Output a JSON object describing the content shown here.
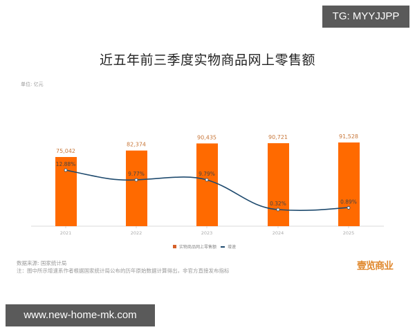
{
  "watermark_top": "TG: MYYJJPP",
  "watermark_bottom": "www.new-home-mk.com",
  "unit_label": "单位: 亿元",
  "legend": {
    "bar_label": "实物商品网上零售额",
    "line_label": "增速"
  },
  "source": {
    "line1": "数据来源: 国家统计局",
    "line2": "注：图中所示增速系作者根据国家统计局公布的历年原始数据计算得出，非官方直接发布指标"
  },
  "logo_text": "壹览商业",
  "colors": {
    "bar": "#ff6a00",
    "line": "#1e4a6e",
    "bar_label": "#c8773a",
    "title": "#222222"
  },
  "chart_data": {
    "type": "bar+line",
    "title": "近五年前三季度实物商品网上零售额",
    "xlabel": "",
    "ylabel": "单位: 亿元",
    "categories": [
      "2021",
      "2022",
      "2023",
      "2024",
      "2025"
    ],
    "series": [
      {
        "name": "实物商品网上零售额",
        "type": "bar",
        "values": [
          75042,
          82374,
          90435,
          90721,
          91528
        ],
        "labels": [
          "75,042",
          "82,374",
          "90,435",
          "90,721",
          "91,528"
        ]
      },
      {
        "name": "增速",
        "type": "line",
        "values": [
          12.88,
          9.77,
          9.79,
          0.32,
          0.89
        ],
        "labels": [
          "12.88%",
          "9.77%",
          "9.79%",
          "0.32%",
          "0.89%"
        ]
      }
    ],
    "grid": false,
    "legend_position": "bottom"
  }
}
